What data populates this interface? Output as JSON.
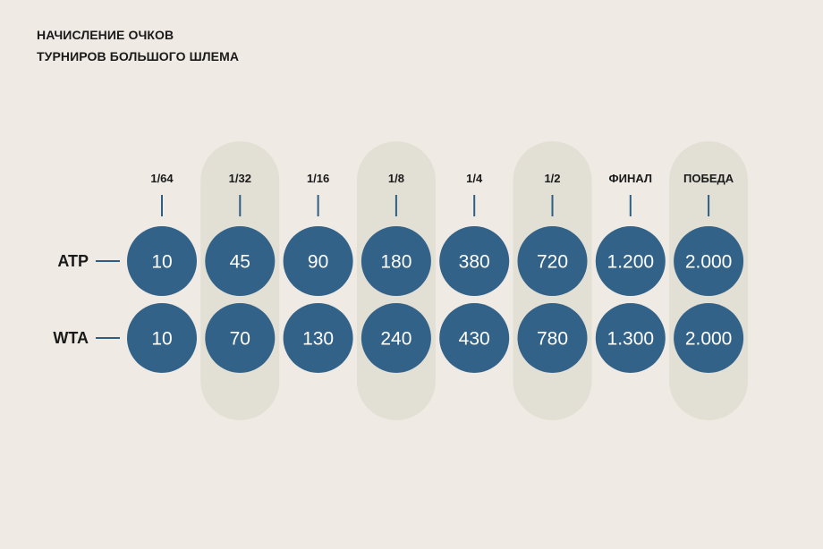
{
  "title_lines": [
    "НАЧИСЛЕНИЕ ОЧКОВ",
    "ТУРНИРОВ БОЛЬШОГО ШЛЕМА"
  ],
  "colors": {
    "background": "#efebe4",
    "band": "#e2dfd4",
    "bubble": "#336289",
    "tick": "#2f5e85",
    "text": "#1a1a1a"
  },
  "chart_data": {
    "type": "table",
    "title": "НАЧИСЛЕНИЕ ОЧКОВ ТУРНИРОВ БОЛЬШОГО ШЛЕМА",
    "categories": [
      "1/64",
      "1/32",
      "1/16",
      "1/8",
      "1/4",
      "1/2",
      "ФИНАЛ",
      "ПОБЕДА"
    ],
    "highlighted_columns": [
      "1/32",
      "1/8",
      "1/2",
      "ПОБЕДА"
    ],
    "series": [
      {
        "name": "ATP",
        "values": [
          10,
          45,
          90,
          180,
          380,
          720,
          1200,
          2000
        ],
        "labels": [
          "10",
          "45",
          "90",
          "180",
          "380",
          "720",
          "1.200",
          "2.000"
        ]
      },
      {
        "name": "WTA",
        "values": [
          10,
          70,
          130,
          240,
          430,
          780,
          1300,
          2000
        ],
        "labels": [
          "10",
          "70",
          "130",
          "240",
          "430",
          "780",
          "1.300",
          "2.000"
        ]
      }
    ]
  }
}
